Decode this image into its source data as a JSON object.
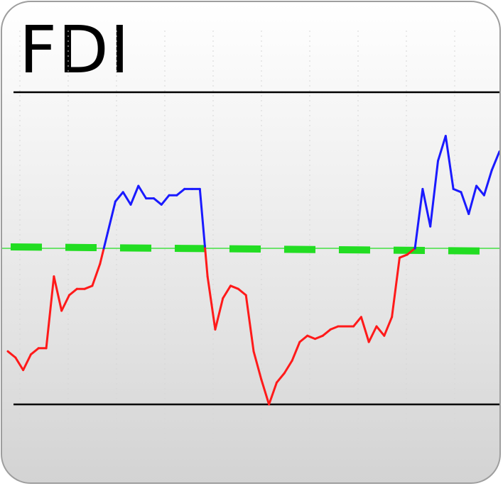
{
  "title": "FDI",
  "colors": {
    "below_threshold": "#ff1a1a",
    "above_threshold": "#1a1aff",
    "threshold_line": "#22dd22",
    "bound_lines": "#000000",
    "grid": "#d6d6d6"
  },
  "chart_data": {
    "type": "line",
    "ylim": [
      1.0,
      2.0
    ],
    "threshold": 1.5,
    "bands": [
      1.0,
      2.0
    ],
    "grid": true,
    "series": [
      {
        "values": [
          1.17,
          1.15,
          1.11,
          1.16,
          1.18,
          1.18,
          1.41,
          1.3,
          1.35,
          1.37,
          1.37,
          1.38,
          1.45,
          1.55,
          1.65,
          1.68,
          1.64,
          1.7,
          1.66,
          1.66,
          1.64,
          1.67,
          1.67,
          1.69,
          1.69,
          1.69,
          1.41,
          1.24,
          1.34,
          1.38,
          1.37,
          1.35,
          1.17,
          1.08,
          1.0,
          1.07,
          1.1,
          1.14,
          1.2,
          1.22,
          1.21,
          1.22,
          1.24,
          1.25,
          1.25,
          1.25,
          1.28,
          1.2,
          1.25,
          1.22,
          1.28,
          1.47,
          1.48,
          1.5,
          1.69,
          1.57,
          1.78,
          1.86,
          1.69,
          1.68,
          1.61,
          1.7,
          1.67,
          1.75,
          1.81
        ]
      }
    ]
  }
}
